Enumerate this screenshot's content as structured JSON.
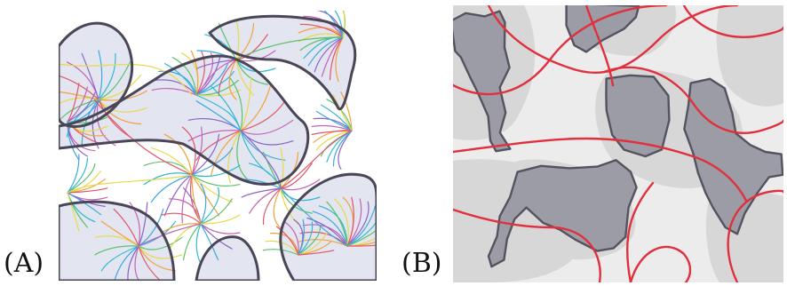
{
  "figure": {
    "panels": [
      {
        "label": "(A)"
      },
      {
        "label": "(B)"
      }
    ]
  },
  "colors": {
    "region_fill_a": "#e3e5f1",
    "boundary": "#4a4658",
    "streamlines": [
      "#e8d94a",
      "#f2a23c",
      "#e0566a",
      "#c463b8",
      "#8a63c8",
      "#3fa7e0",
      "#2fbad0",
      "#5cc26a"
    ],
    "background_b": "#ececec",
    "region_light_b": "#d7d7d7",
    "region_dark_b": "#9c9ca6",
    "contour_red": "#e0303e"
  }
}
